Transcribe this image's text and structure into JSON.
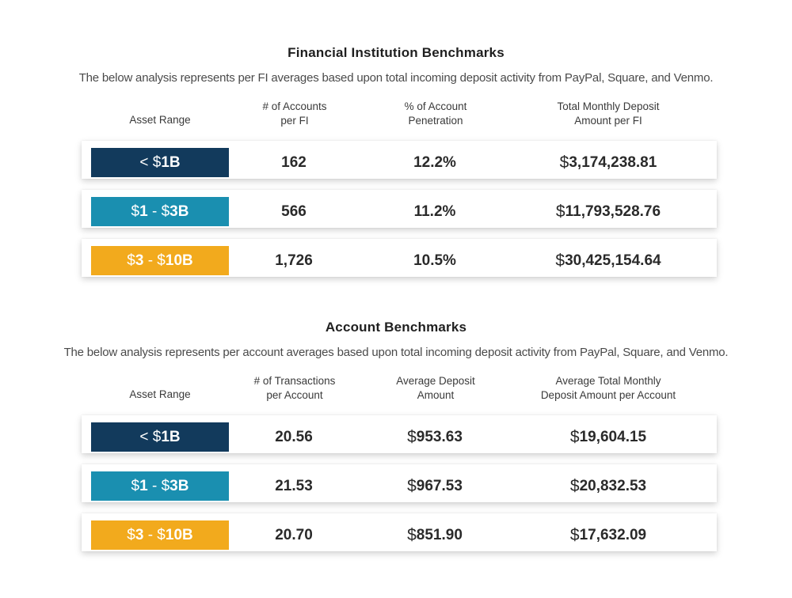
{
  "colors": {
    "tier1": "#123a5c",
    "tier2": "#1a8fb0",
    "tier3": "#f2aa1d"
  },
  "chart_data": [
    {
      "type": "table",
      "title": "Financial Institution Benchmarks",
      "subtitle": "The below analysis represents per FI averages based upon total incoming deposit activity from PayPal, Square, and Venmo.",
      "columns": [
        "Asset Range",
        "# of Accounts\nper FI",
        "% of Account\nPenetration",
        "Total Monthly Deposit\nAmount per FI"
      ],
      "rows": [
        {
          "range_prefix": "< $",
          "range_bold": "1B",
          "cells": [
            {
              "cur": "",
              "val": "162"
            },
            {
              "cur": "",
              "val": "12.2%"
            },
            {
              "cur": "$",
              "val": "3,174,238.81"
            }
          ]
        },
        {
          "range_prefix": "$",
          "range_bold": "1",
          "range_mid": " - $",
          "range_bold2": "3B",
          "cells": [
            {
              "cur": "",
              "val": "566"
            },
            {
              "cur": "",
              "val": "11.2%"
            },
            {
              "cur": "$",
              "val": "11,793,528.76"
            }
          ]
        },
        {
          "range_prefix": "$",
          "range_bold": "3",
          "range_mid": " - $",
          "range_bold2": "10B",
          "cells": [
            {
              "cur": "",
              "val": "1,726"
            },
            {
              "cur": "",
              "val": "10.5%"
            },
            {
              "cur": "$",
              "val": "30,425,154.64"
            }
          ]
        }
      ]
    },
    {
      "type": "table",
      "title": "Account Benchmarks",
      "subtitle": "The below analysis represents per account averages based upon total incoming deposit activity from PayPal, Square, and Venmo.",
      "columns": [
        "Asset Range",
        "# of Transactions\nper Account",
        "Average Deposit\nAmount",
        "Average Total Monthly\nDeposit Amount per Account"
      ],
      "rows": [
        {
          "range_prefix": "< $",
          "range_bold": "1B",
          "cells": [
            {
              "cur": "",
              "val": "20.56"
            },
            {
              "cur": "$",
              "val": "953.63"
            },
            {
              "cur": "$",
              "val": "19,604.15"
            }
          ]
        },
        {
          "range_prefix": "$",
          "range_bold": "1",
          "range_mid": " - $",
          "range_bold2": "3B",
          "cells": [
            {
              "cur": "",
              "val": "21.53"
            },
            {
              "cur": "$",
              "val": "967.53"
            },
            {
              "cur": "$",
              "val": "20,832.53"
            }
          ]
        },
        {
          "range_prefix": "$",
          "range_bold": "3",
          "range_mid": " - $",
          "range_bold2": "10B",
          "cells": [
            {
              "cur": "",
              "val": "20.70"
            },
            {
              "cur": "$",
              "val": "851.90"
            },
            {
              "cur": "$",
              "val": "17,632.09"
            }
          ]
        }
      ]
    }
  ]
}
